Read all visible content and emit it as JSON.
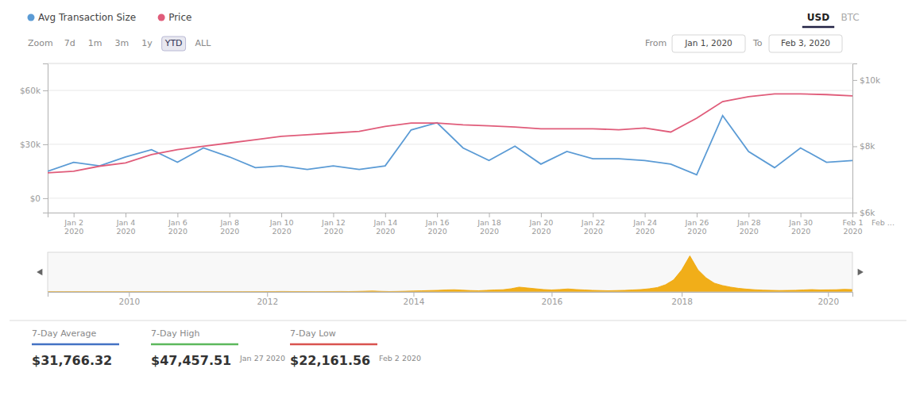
{
  "chart_data": [
    {
      "type": "line",
      "categories": [
        null,
        "Jan 2\n2020",
        null,
        "Jan 4\n2020",
        null,
        "Jan 6\n2020",
        null,
        "Jan 8\n2020",
        null,
        "Jan 10\n2020",
        null,
        "Jan 12\n2020",
        null,
        "Jan 14\n2020",
        null,
        "Jan 16\n2020",
        null,
        "Jan 18\n2020",
        null,
        "Jan 20\n2020",
        null,
        "Jan 22\n2020",
        null,
        "Jan 24\n2020",
        null,
        "Jan 26\n2020",
        null,
        "Jan 28\n2020",
        null,
        "Jan 30\n2020",
        null,
        "Feb 1\n2020"
      ],
      "series": [
        {
          "name": "Avg Transaction Size",
          "color": "#5b9bd5",
          "values": [
            15000,
            20000,
            18000,
            23000,
            27000,
            20000,
            28000,
            23000,
            17000,
            18000,
            16000,
            18000,
            16000,
            18000,
            38000,
            42000,
            28000,
            21000,
            29000,
            19000,
            26000,
            22000,
            22000,
            21000,
            19000,
            13000,
            46000,
            26000,
            17000,
            28000,
            20000,
            21000
          ]
        },
        {
          "name": "Price",
          "color": "#e05c7a",
          "axis": "y2",
          "values": [
            7200,
            7250,
            7400,
            7500,
            7750,
            7900,
            8000,
            8100,
            8200,
            8300,
            8350,
            8400,
            8450,
            8600,
            8700,
            8700,
            8650,
            8620,
            8580,
            8530,
            8530,
            8530,
            8500,
            8550,
            8430,
            8850,
            9350,
            9500,
            9580,
            9580,
            9560,
            9520
          ]
        }
      ],
      "ylim": [
        -8000,
        75000
      ],
      "yticks": [
        {
          "value": 0,
          "label": "$0"
        },
        {
          "value": 30000,
          "label": "$30k"
        },
        {
          "value": 60000,
          "label": "$60k"
        }
      ],
      "y2lim": [
        6000,
        10500
      ],
      "y2ticks": [
        {
          "value": 6000,
          "label": "$6k"
        },
        {
          "value": 8000,
          "label": "$8k"
        },
        {
          "value": 10000,
          "label": "$10k"
        }
      ],
      "grid": true,
      "annotations": [
        "Feb ..."
      ]
    },
    {
      "type": "area",
      "color": "#f0a500",
      "categories": [
        null,
        null,
        null,
        null,
        null,
        null,
        null,
        null,
        null,
        null,
        "2010",
        null,
        null,
        null,
        null,
        null,
        null,
        null,
        null,
        null,
        null,
        null,
        null,
        null,
        null,
        null,
        null,
        "2012",
        null,
        null,
        null,
        null,
        null,
        null,
        null,
        null,
        null,
        null,
        null,
        null,
        null,
        null,
        null,
        null,
        null,
        "2014",
        null,
        null,
        null,
        null,
        null,
        null,
        null,
        null,
        null,
        null,
        null,
        null,
        null,
        null,
        null,
        null,
        "2016",
        null,
        null,
        null,
        null,
        null,
        null,
        null,
        null,
        null,
        null,
        null,
        null,
        null,
        null,
        null,
        "2018",
        null,
        null,
        null,
        null,
        null,
        null,
        null,
        null,
        null,
        null,
        null,
        null,
        null,
        null,
        null,
        null,
        null,
        "2020",
        null,
        null,
        null
      ],
      "values": [
        0.5,
        0.5,
        0.5,
        0.5,
        0.5,
        0.5,
        0.5,
        0.5,
        0.5,
        0.5,
        0.5,
        0.5,
        0.5,
        0.5,
        0.5,
        0.5,
        0.5,
        0.5,
        0.5,
        0.5,
        0.5,
        0.5,
        0.5,
        0.5,
        0.5,
        0.6,
        0.7,
        0.8,
        1.0,
        1.2,
        1.0,
        0.9,
        0.8,
        0.7,
        0.8,
        1.0,
        1.2,
        1.0,
        1.3,
        1.8,
        2.3,
        1.5,
        1.0,
        1.3,
        1.8,
        2.3,
        2.8,
        3.5,
        4.0,
        5.0,
        5.5,
        4.5,
        3.5,
        3.0,
        4.0,
        5.0,
        5.5,
        8.0,
        12.0,
        10.0,
        8.0,
        6.0,
        5.0,
        6.0,
        7.5,
        6.0,
        5.0,
        4.0,
        3.5,
        3.0,
        3.5,
        4.0,
        5.0,
        6.0,
        8.0,
        11.0,
        18.0,
        30.0,
        55.0,
        90.0,
        55.0,
        35.0,
        22.0,
        16.0,
        12.0,
        9.0,
        7.0,
        5.5,
        4.5,
        4.0,
        3.5,
        3.8,
        4.2,
        5.0,
        5.8,
        5.0,
        5.2,
        5.5,
        6.5,
        5.8
      ],
      "ylim": [
        0,
        99
      ],
      "tick_labels": "x"
    }
  ],
  "header": {
    "currencies": [
      "USD",
      "BTC"
    ],
    "zoom_label": "Zoom",
    "zoom_buttons": [
      "7d",
      "1m",
      "3m",
      "1y",
      "YTD",
      "ALL"
    ],
    "selected_zoom": "YTD",
    "from_label": "From",
    "from_date": "Jan 1, 2020",
    "to_label": "To",
    "to_date": "Feb 3, 2020"
  },
  "stats": [
    {
      "label": "7-Day Average",
      "value": "$31,766.32",
      "color": "#4472c4"
    },
    {
      "label": "7-Day High",
      "value": "$47,457.51",
      "color": "#5cb85c",
      "date": "Jan 27 2020"
    },
    {
      "label": "7-Day Low",
      "value": "$22,161.56",
      "color": "#d9534f",
      "date": "Feb 2 2020"
    }
  ]
}
